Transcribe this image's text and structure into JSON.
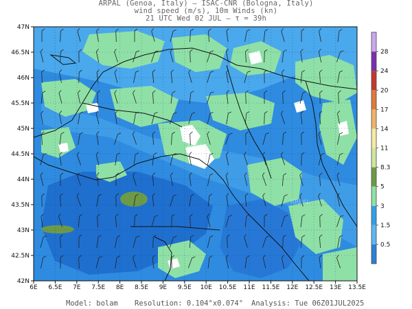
{
  "header": {
    "line1": "ARPAL (Genoa, Italy)  —  ISAC-CNR (Bologna, Italy)",
    "line2": "wind speed (m/s), 10m Winds (kn)",
    "line3": "21 UTC Wed 02 JUL  —  τ = 39h"
  },
  "axes": {
    "y_labels": [
      "47N",
      "46.5N",
      "46N",
      "45.5N",
      "45N",
      "44.5N",
      "44N",
      "43.5N",
      "43N",
      "42.5N",
      "42N"
    ],
    "x_labels": [
      "6E",
      "6.5E",
      "7E",
      "7.5E",
      "8E",
      "8.5E",
      "9E",
      "9.5E",
      "10E",
      "10.5E",
      "11E",
      "11.5E",
      "12E",
      "12.5E",
      "13E",
      "13.5E"
    ],
    "lon_range": [
      6,
      13.5
    ],
    "lat_range": [
      42,
      47
    ]
  },
  "colorbar": {
    "labels": [
      "0.5",
      "1.5",
      "3",
      "5",
      "8.3",
      "11",
      "14",
      "17",
      "20",
      "24",
      "28"
    ],
    "colors": [
      "#2e7fd6",
      "#5db6f0",
      "#2fa0e8",
      "#8fe0a6",
      "#6d9a47",
      "#cfe6a0",
      "#f4eaa2",
      "#f2b26a",
      "#e07a3c",
      "#c33a2a",
      "#7a2fb0",
      "#c9a8f0"
    ]
  },
  "footer": {
    "model": "Model: bolam",
    "resolution": "Resolution: 0.104°x0.074°",
    "analysis": "Analysis: Tue 06Z01JUL2025"
  },
  "watermark": "ARPAL"
}
